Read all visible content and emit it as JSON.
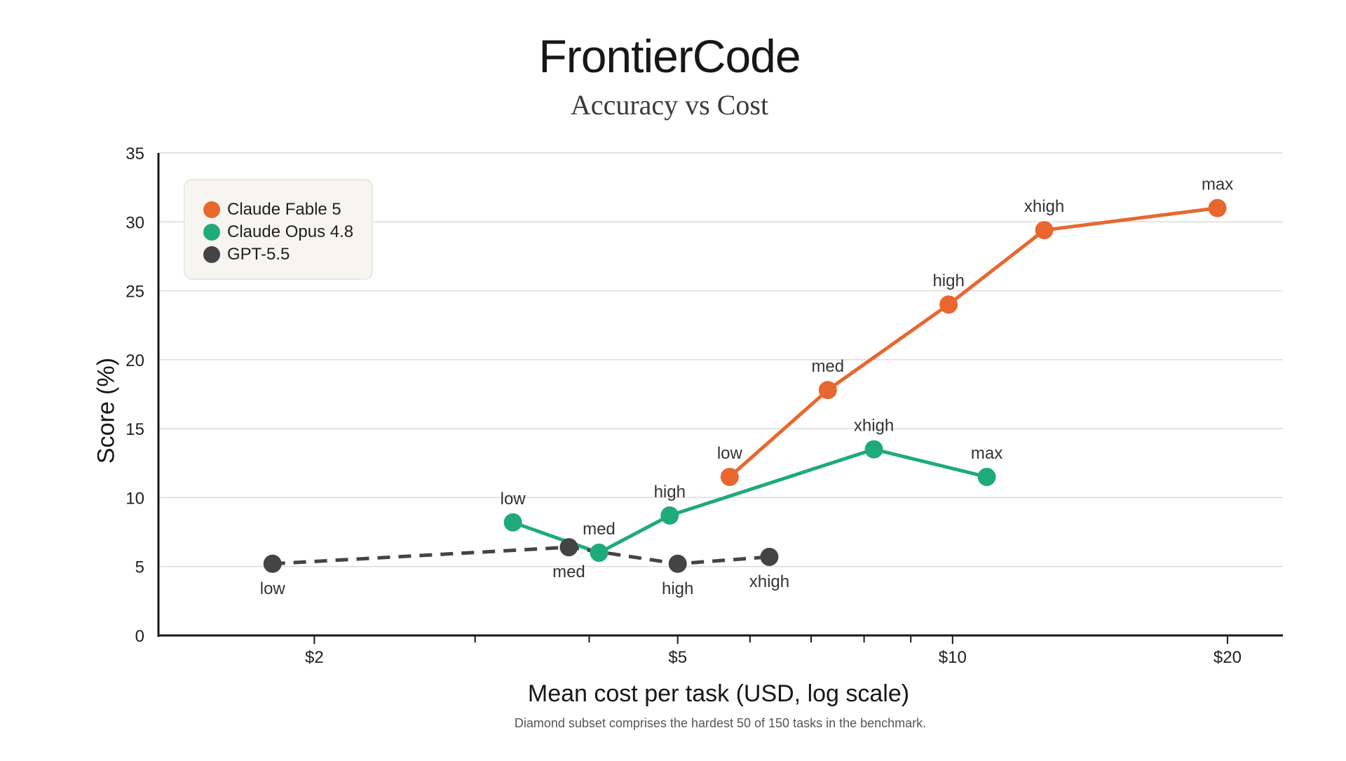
{
  "header": {
    "title": "FrontierCode",
    "subtitle": "Accuracy vs Cost"
  },
  "axes": {
    "ylabel": "Score (%)",
    "xlabel": "Mean cost per task (USD, log scale)",
    "footnote": "Diamond subset comprises the hardest 50 of 150 tasks in the benchmark."
  },
  "legend": {
    "items": [
      {
        "label": "Claude Fable 5",
        "color": "#e8672f"
      },
      {
        "label": "Claude Opus 4.8",
        "color": "#1faa7a"
      },
      {
        "label": "GPT-5.5",
        "color": "#444444"
      }
    ],
    "placement": "top-left"
  },
  "chart_data": {
    "type": "line",
    "title": "FrontierCode",
    "subtitle": "Accuracy vs Cost",
    "xlabel": "Mean cost per task (USD, log scale)",
    "ylabel": "Score (%)",
    "xscale": "log",
    "xlim": [
      1.35,
      23
    ],
    "ylim": [
      0,
      35
    ],
    "xticks": [
      {
        "value": 2,
        "label": "$2"
      },
      {
        "value": 5,
        "label": "$5"
      },
      {
        "value": 10,
        "label": "$10"
      },
      {
        "value": 20,
        "label": "$20"
      }
    ],
    "minor_xticks": [
      3,
      4,
      6,
      7,
      8,
      9
    ],
    "yticks": [
      0,
      5,
      10,
      15,
      20,
      25,
      30,
      35
    ],
    "grid": true,
    "series": [
      {
        "name": "Claude Fable 5",
        "color": "#e8672f",
        "line_style": "solid",
        "points": [
          {
            "x": 5.7,
            "y": 11.5,
            "label": "low",
            "label_position": "above"
          },
          {
            "x": 7.3,
            "y": 17.8,
            "label": "med",
            "label_position": "above"
          },
          {
            "x": 9.9,
            "y": 24.0,
            "label": "high",
            "label_position": "above"
          },
          {
            "x": 12.6,
            "y": 29.4,
            "label": "xhigh",
            "label_position": "above"
          },
          {
            "x": 19.5,
            "y": 31.0,
            "label": "max",
            "label_position": "above"
          }
        ]
      },
      {
        "name": "Claude Opus 4.8",
        "color": "#1faa7a",
        "line_style": "solid",
        "points": [
          {
            "x": 3.3,
            "y": 8.2,
            "label": "low",
            "label_position": "above"
          },
          {
            "x": 4.1,
            "y": 6.0,
            "label": "med",
            "label_position": "above"
          },
          {
            "x": 4.9,
            "y": 8.7,
            "label": "high",
            "label_position": "above"
          },
          {
            "x": 8.2,
            "y": 13.5,
            "label": "xhigh",
            "label_position": "above"
          },
          {
            "x": 10.9,
            "y": 11.5,
            "label": "max",
            "label_position": "above"
          }
        ]
      },
      {
        "name": "GPT-5.5",
        "color": "#444444",
        "line_style": "dashed",
        "points": [
          {
            "x": 1.8,
            "y": 5.2,
            "label": "low",
            "label_position": "below"
          },
          {
            "x": 3.8,
            "y": 6.4,
            "label": "med",
            "label_position": "below"
          },
          {
            "x": 5.0,
            "y": 5.2,
            "label": "high",
            "label_position": "below"
          },
          {
            "x": 6.3,
            "y": 5.7,
            "label": "xhigh",
            "label_position": "below"
          }
        ]
      }
    ]
  }
}
